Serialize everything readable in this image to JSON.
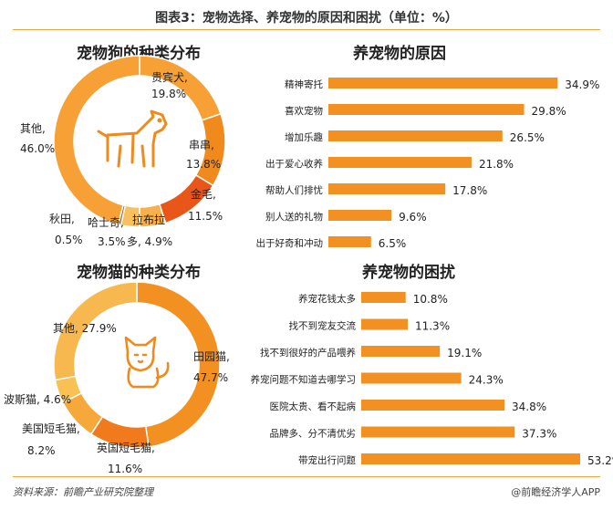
{
  "header": {
    "title": "图表3：宠物选择、养宠物的原因和困扰（单位：%）"
  },
  "footer": {
    "source": "资料来源：前瞻产业研究院整理",
    "brand": "@前瞻经济学人APP"
  },
  "colors": {
    "accent": "#f4a33a",
    "bar": "#f39022",
    "dog_slices": [
      "#f7a035",
      "#f08a1c",
      "#e8561a",
      "#f7b04b",
      "#f9c060",
      "#a45a12"
    ],
    "cat_slices": [
      "#f39022",
      "#f07a1c",
      "#f6a83a",
      "#f9c054",
      "#f7b84f"
    ]
  },
  "icons": {
    "dog": "dog-outline-icon",
    "cat": "cat-outline-icon"
  },
  "chart_data": [
    {
      "type": "pie",
      "title": "宠物狗的种类分布",
      "unit": "%",
      "slices": [
        {
          "name": "贵宾犬",
          "value": 19.8
        },
        {
          "name": "串串",
          "value": 13.8
        },
        {
          "name": "金毛",
          "value": 11.5
        },
        {
          "name": "拉布拉多",
          "value": 4.9
        },
        {
          "name": "哈士奇",
          "value": 3.5
        },
        {
          "name": "秋田",
          "value": 0.5
        },
        {
          "name": "其他",
          "value": 46.0
        }
      ],
      "labels": [
        {
          "name": "贵宾犬,",
          "value": "19.8%"
        },
        {
          "name": "串串,",
          "value": "13.8%"
        },
        {
          "name": "金毛,",
          "value": "11.5%"
        },
        {
          "name": "拉布拉",
          "value": "多, 4.9%"
        },
        {
          "name": "哈士奇,",
          "value": "3.5%"
        },
        {
          "name": "秋田,",
          "value": "0.5%"
        },
        {
          "name": "其他,",
          "value": "46.0%"
        }
      ]
    },
    {
      "type": "bar",
      "orientation": "horizontal",
      "title": "养宠物的原因",
      "unit": "%",
      "categories": [
        "精神寄托",
        "喜欢宠物",
        "增加乐趣",
        "出于爱心收养",
        "帮助人们排忧",
        "别人送的礼物",
        "出于好奇和冲动"
      ],
      "values": [
        34.9,
        29.8,
        26.5,
        21.8,
        17.8,
        9.6,
        6.5
      ],
      "xlim": [
        0,
        35
      ]
    },
    {
      "type": "pie",
      "title": "宠物猫的种类分布",
      "unit": "%",
      "slices": [
        {
          "name": "田园猫",
          "value": 47.7
        },
        {
          "name": "英国短毛猫",
          "value": 11.6
        },
        {
          "name": "美国短毛猫",
          "value": 8.2
        },
        {
          "name": "波斯猫",
          "value": 4.6
        },
        {
          "name": "其他",
          "value": 27.9
        }
      ],
      "labels": [
        {
          "name": "田园猫,",
          "value": "47.7%"
        },
        {
          "name": "英国短毛猫,",
          "value": "11.6%"
        },
        {
          "name": "美国短毛猫,",
          "value": "8.2%"
        },
        {
          "name": "波斯猫, 4.6%",
          "value": ""
        },
        {
          "name": "其他, 27.9%",
          "value": ""
        }
      ]
    },
    {
      "type": "bar",
      "orientation": "horizontal",
      "title": "养宠物的困扰",
      "unit": "%",
      "categories": [
        "养宠花钱太多",
        "找不到宠友交流",
        "找不到很好的产品喂养",
        "养宠问题不知道去哪学习",
        "医院太贵、看不起病",
        "品牌多、分不清优劣",
        "带宠出行问题"
      ],
      "values": [
        10.8,
        11.3,
        19.1,
        24.3,
        34.8,
        37.3,
        53.2
      ],
      "xlim": [
        0,
        53.2
      ]
    }
  ]
}
